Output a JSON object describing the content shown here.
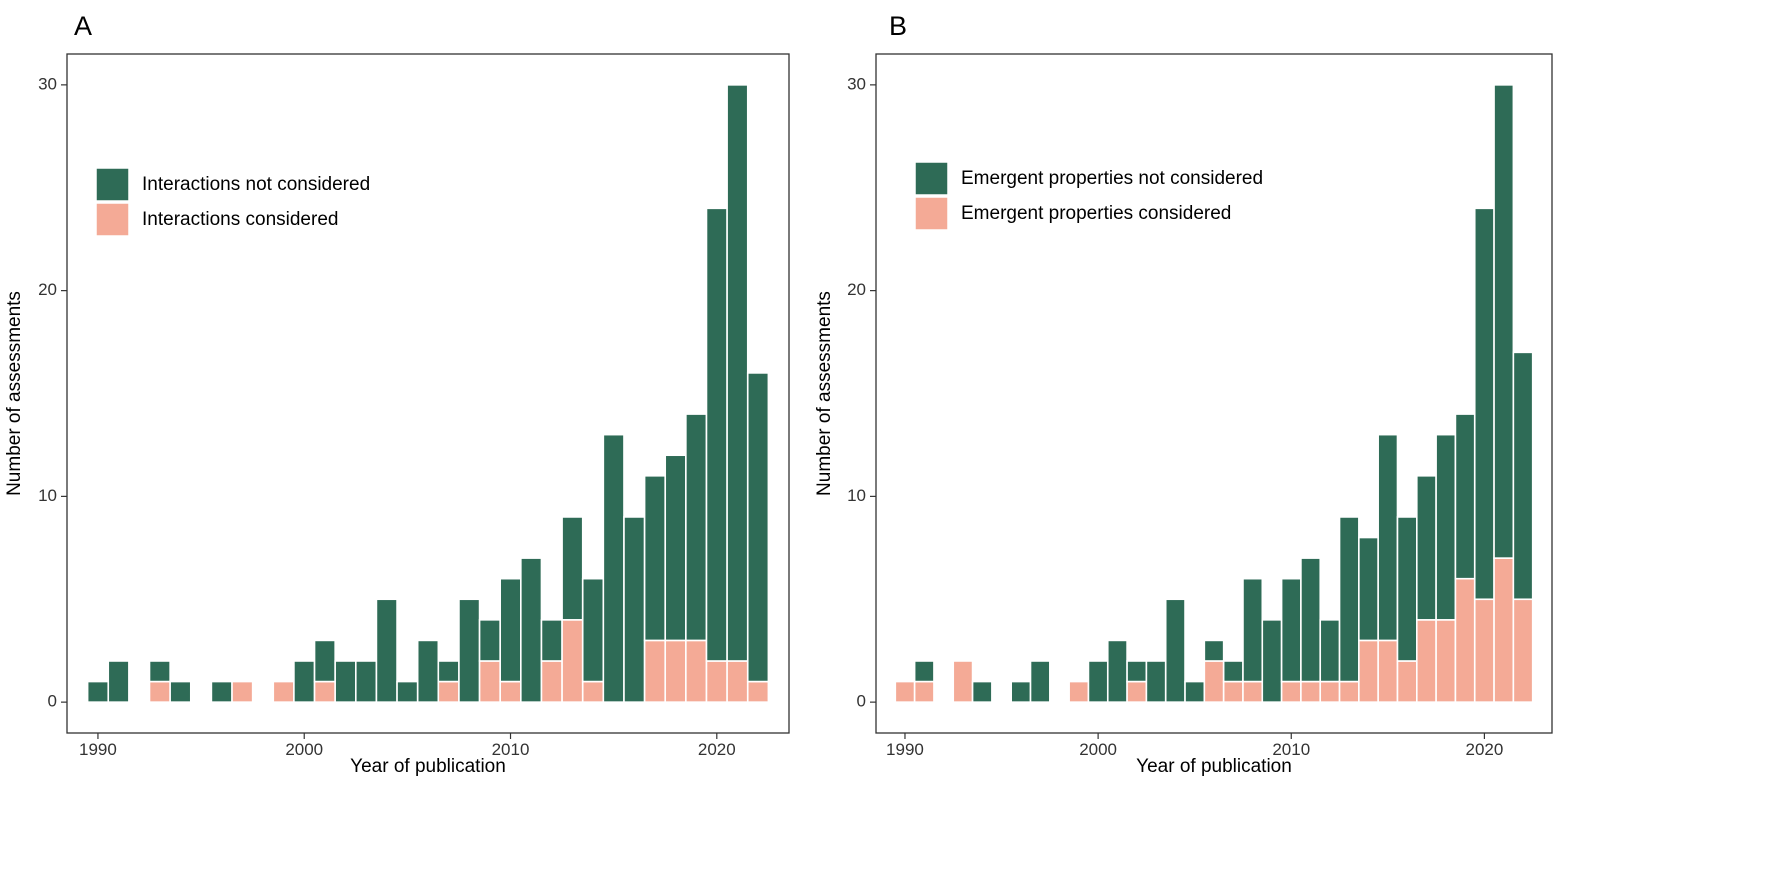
{
  "colors": {
    "not_considered": "#2e6b56",
    "considered": "#f4aa96"
  },
  "chart_data": [
    {
      "panel": "A",
      "type": "bar",
      "stacked": true,
      "xlabel": "Year of publication",
      "ylabel": "Number of assessments",
      "xlim": [
        1988.5,
        2023.5
      ],
      "ylim": [
        -1.5,
        31.5
      ],
      "xticks": [
        1990,
        2000,
        2010,
        2020
      ],
      "yticks": [
        0,
        10,
        20,
        30
      ],
      "legend_position": "top-left",
      "x": [
        1990,
        1991,
        1992,
        1993,
        1994,
        1995,
        1996,
        1997,
        1998,
        1999,
        2000,
        2001,
        2002,
        2003,
        2004,
        2005,
        2006,
        2007,
        2008,
        2009,
        2010,
        2011,
        2012,
        2013,
        2014,
        2015,
        2016,
        2017,
        2018,
        2019,
        2020,
        2021,
        2022
      ],
      "series": [
        {
          "name": "Interactions considered",
          "color_key": "considered",
          "values": [
            0,
            0,
            0,
            1,
            0,
            0,
            0,
            1,
            0,
            1,
            0,
            1,
            0,
            0,
            0,
            0,
            0,
            1,
            0,
            2,
            1,
            0,
            2,
            4,
            1,
            0,
            0,
            3,
            3,
            3,
            2,
            2,
            1
          ]
        },
        {
          "name": "Interactions not considered",
          "color_key": "not_considered",
          "values": [
            1,
            2,
            0,
            1,
            1,
            0,
            1,
            0,
            0,
            0,
            2,
            2,
            2,
            2,
            5,
            1,
            3,
            1,
            5,
            2,
            5,
            7,
            2,
            5,
            5,
            13,
            9,
            8,
            9,
            11,
            22,
            28,
            15
          ]
        }
      ],
      "legend": [
        "Interactions not considered",
        "Interactions considered"
      ]
    },
    {
      "panel": "B",
      "type": "bar",
      "stacked": true,
      "xlabel": "Year of publication",
      "ylabel": "Number of assessments",
      "xlim": [
        1988.5,
        2023.5
      ],
      "ylim": [
        -1.5,
        31.5
      ],
      "xticks": [
        1990,
        2000,
        2010,
        2020
      ],
      "yticks": [
        0,
        10,
        20,
        30
      ],
      "legend_position": "top-left",
      "x": [
        1990,
        1991,
        1992,
        1993,
        1994,
        1995,
        1996,
        1997,
        1998,
        1999,
        2000,
        2001,
        2002,
        2003,
        2004,
        2005,
        2006,
        2007,
        2008,
        2009,
        2010,
        2011,
        2012,
        2013,
        2014,
        2015,
        2016,
        2017,
        2018,
        2019,
        2020,
        2021,
        2022
      ],
      "series": [
        {
          "name": "Emergent properties considered",
          "color_key": "considered",
          "values": [
            1,
            1,
            0,
            2,
            0,
            0,
            0,
            0,
            0,
            1,
            0,
            0,
            1,
            0,
            0,
            0,
            2,
            1,
            1,
            0,
            1,
            1,
            1,
            1,
            3,
            3,
            2,
            4,
            4,
            6,
            5,
            7,
            5
          ]
        },
        {
          "name": "Emergent properties not considered",
          "color_key": "not_considered",
          "values": [
            0,
            1,
            0,
            0,
            1,
            0,
            1,
            2,
            0,
            0,
            2,
            3,
            1,
            2,
            5,
            1,
            1,
            1,
            5,
            4,
            5,
            6,
            3,
            8,
            5,
            10,
            7,
            7,
            9,
            8,
            19,
            23,
            12
          ]
        }
      ],
      "legend": [
        "Emergent properties not considered",
        "Emergent properties considered"
      ]
    }
  ]
}
